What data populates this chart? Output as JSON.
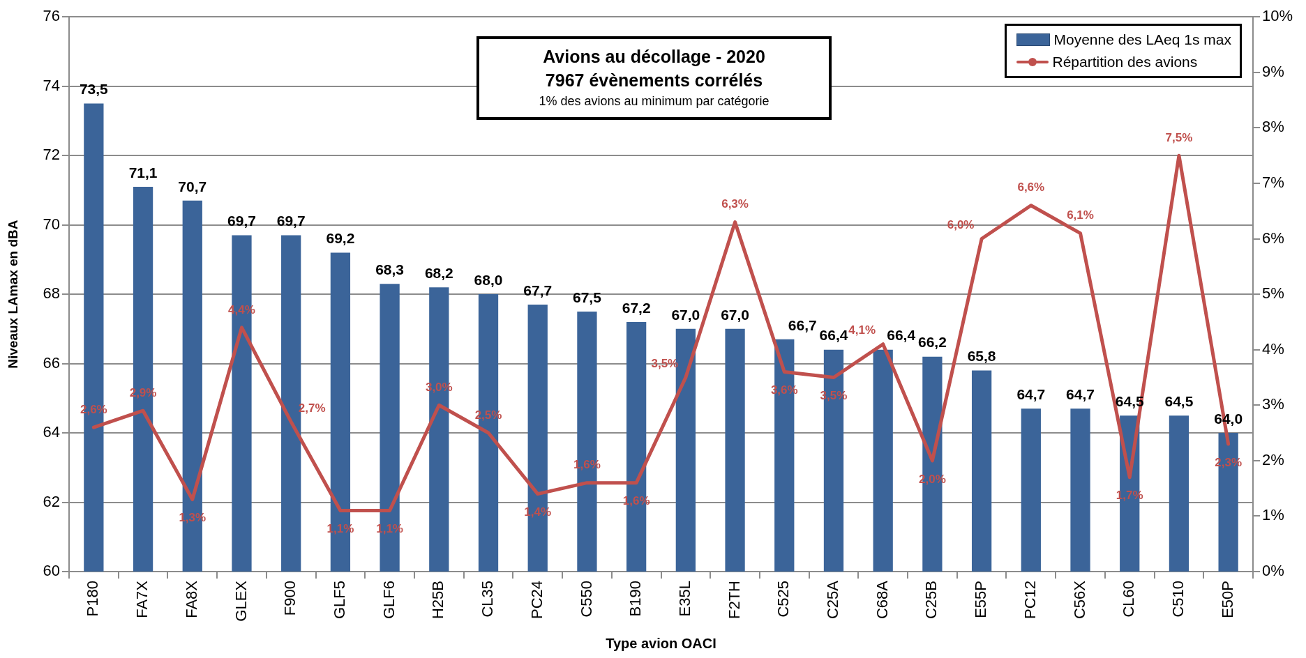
{
  "chart_data": {
    "type": "bar",
    "title": "Avions au décollage - 2020",
    "subtitle": "7967 évènements corrélés",
    "annotations": [
      "1% des avions au minimum par catégorie"
    ],
    "xlabel": "Type avion OACI",
    "ylabel": "Niveaux LAmax en dBA",
    "categories": [
      "P180",
      "FA7X",
      "FA8X",
      "GLEX",
      "F900",
      "GLF5",
      "GLF6",
      "H25B",
      "CL35",
      "PC24",
      "C550",
      "B190",
      "E35L",
      "F2TH",
      "C525",
      "C25A",
      "C68A",
      "C25B",
      "E55P",
      "PC12",
      "C56X",
      "CL60",
      "C510",
      "E50P"
    ],
    "series": [
      {
        "name": "Moyenne des LAeq 1s max",
        "color": "#3b6499",
        "values": [
          73.5,
          71.1,
          70.7,
          69.7,
          69.7,
          69.2,
          68.3,
          68.2,
          68.0,
          67.7,
          67.5,
          67.2,
          67.0,
          67.0,
          66.7,
          66.4,
          66.4,
          66.2,
          65.8,
          64.7,
          64.7,
          64.5,
          64.5,
          64.0
        ],
        "value_labels": [
          "73,5",
          "71,1",
          "70,7",
          "69,7",
          "69,7",
          "69,2",
          "68,3",
          "68,2",
          "68,0",
          "67,7",
          "67,5",
          "67,2",
          "67,0",
          "67,0",
          "66,7",
          "66,4",
          "66,4",
          "66,2",
          "65,8",
          "64,7",
          "64,7",
          "64,5",
          "64,5",
          "64,0"
        ]
      },
      {
        "name": "Répartition des avions",
        "type": "line",
        "axis": "y2",
        "color": "#c0504d",
        "values": [
          2.6,
          2.9,
          1.3,
          4.4,
          2.7,
          1.1,
          1.1,
          3.0,
          2.5,
          1.4,
          1.6,
          1.6,
          3.5,
          6.3,
          3.6,
          3.5,
          4.1,
          2.0,
          6.0,
          6.6,
          6.1,
          1.7,
          7.5,
          2.3
        ],
        "value_labels": [
          "2,6%",
          "2,9%",
          "1,3%",
          "4,4%",
          "2,7%",
          "1,1%",
          "1,1%",
          "3,0%",
          "2,5%",
          "1,4%",
          "1,6%",
          "1,6%",
          "3,5%",
          "6,3%",
          "3,6%",
          "3,5%",
          "4,1%",
          "2,0%",
          "6,0%",
          "6,6%",
          "6,1%",
          "1,7%",
          "7,5%",
          "2,3%"
        ]
      }
    ],
    "ylim": [
      60,
      76
    ],
    "yticks": [
      60,
      62,
      64,
      66,
      68,
      70,
      72,
      74,
      76
    ],
    "y2lim": [
      0,
      10
    ],
    "y2ticks": [
      {
        "value": 0,
        "label": "0%"
      },
      {
        "value": 1,
        "label": "1%"
      },
      {
        "value": 2,
        "label": "2%"
      },
      {
        "value": 3,
        "label": "3%"
      },
      {
        "value": 4,
        "label": "4%"
      },
      {
        "value": 5,
        "label": "5%"
      },
      {
        "value": 6,
        "label": "6%"
      },
      {
        "value": 7,
        "label": "7%"
      },
      {
        "value": 8,
        "label": "8%"
      },
      {
        "value": 9,
        "label": "9%"
      },
      {
        "value": 10,
        "label": "10%"
      }
    ],
    "grid": "y",
    "legend": "top right",
    "line_style": "solid"
  }
}
